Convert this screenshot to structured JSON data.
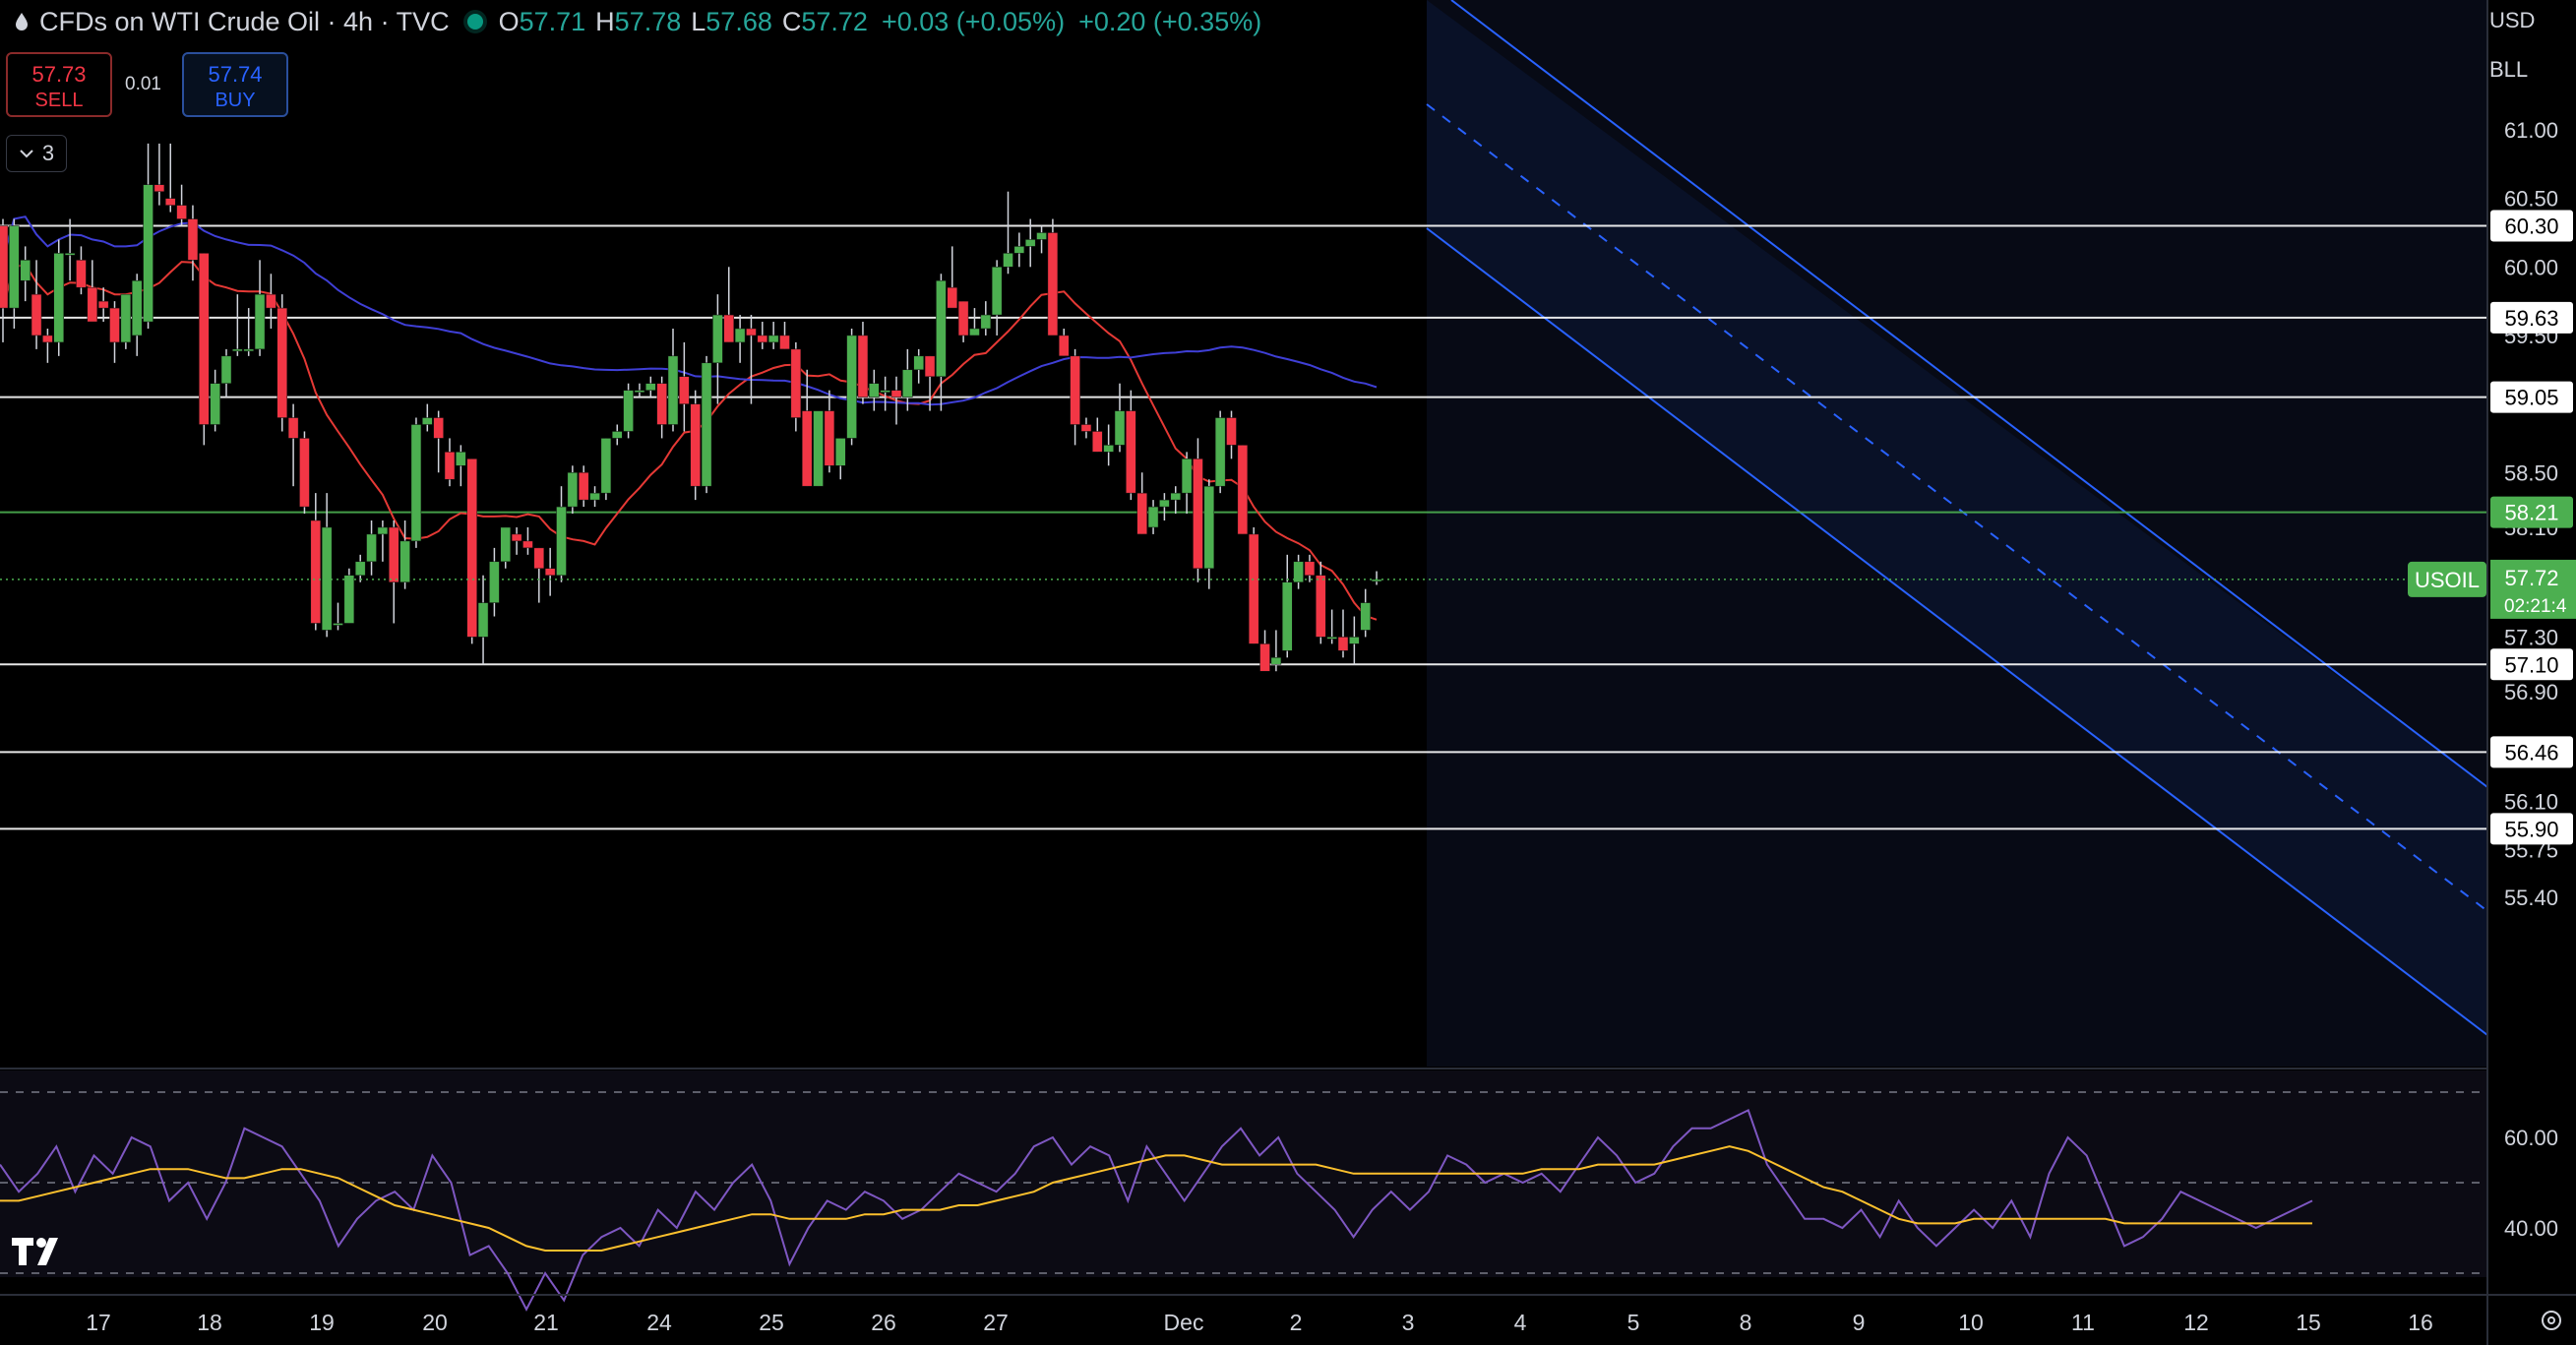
{
  "header": {
    "symbol_title": "CFDs on WTI Crude Oil · 4h · TVC",
    "open": "57.71",
    "high": "57.78",
    "low": "57.68",
    "close": "57.72",
    "change": "+0.03 (+0.05%)",
    "change2": "+0.20 (+0.35%)"
  },
  "trade": {
    "sell_price": "57.73",
    "sell_label": "SELL",
    "spread": "0.01",
    "buy_price": "57.74",
    "buy_label": "BUY"
  },
  "indicators_toggle": "3",
  "right_top": {
    "currency": "USD",
    "unit": "BLL"
  },
  "last_price": {
    "label": "USOIL",
    "price": "57.72",
    "countdown": "02:21:4"
  },
  "colors": {
    "up": "#4caf50",
    "down": "#f23645",
    "ma_fast": "#e53935",
    "ma_slow": "#3f3fd6",
    "rsi": "#7e57c2",
    "rsi_ma": "#fbc02d",
    "channel": "#2962ff"
  },
  "chart_data": [
    {
      "type": "candlestick",
      "title": "CFDs on WTI Crude Oil · 4h · TVC",
      "x_labels": [
        "17",
        "18",
        "19",
        "20",
        "21",
        "24",
        "25",
        "26",
        "27",
        "Dec",
        "2",
        "3",
        "4",
        "5",
        "8",
        "9",
        "10",
        "11",
        "12",
        "15",
        "16"
      ],
      "y_ticks": [
        "61.00",
        "60.50",
        "60.00",
        "59.50",
        "58.50",
        "58.10",
        "57.30",
        "56.90",
        "56.10",
        "55.75",
        "55.40"
      ],
      "ylim": [
        55.2,
        61.6
      ],
      "horizontal_levels": [
        {
          "value": 60.3,
          "label": "60.30",
          "color": "#ffffff"
        },
        {
          "value": 59.63,
          "label": "59.63",
          "color": "#ffffff"
        },
        {
          "value": 59.05,
          "label": "59.05",
          "color": "#ffffff"
        },
        {
          "value": 58.21,
          "label": "58.21",
          "color": "#4caf50"
        },
        {
          "value": 57.1,
          "label": "57.10",
          "color": "#ffffff"
        },
        {
          "value": 56.46,
          "label": "56.46",
          "color": "#ffffff"
        },
        {
          "value": 55.9,
          "label": "55.90",
          "color": "#ffffff"
        }
      ],
      "candles": [
        [
          60.3,
          60.35,
          59.45,
          59.7
        ],
        [
          59.7,
          60.35,
          59.55,
          60.3
        ],
        [
          59.9,
          60.15,
          59.75,
          60.05
        ],
        [
          59.8,
          60.05,
          59.4,
          59.5
        ],
        [
          59.5,
          59.55,
          59.3,
          59.45
        ],
        [
          59.45,
          60.2,
          59.35,
          60.1
        ],
        [
          60.1,
          60.35,
          59.9,
          60.1
        ],
        [
          60.05,
          60.15,
          59.8,
          59.85
        ],
        [
          59.85,
          60.05,
          59.6,
          59.6
        ],
        [
          59.75,
          59.85,
          59.6,
          59.7
        ],
        [
          59.7,
          59.75,
          59.3,
          59.45
        ],
        [
          59.45,
          59.8,
          59.4,
          59.8
        ],
        [
          59.5,
          59.95,
          59.35,
          59.9
        ],
        [
          59.6,
          60.9,
          59.55,
          60.6
        ],
        [
          60.6,
          60.9,
          60.45,
          60.55
        ],
        [
          60.5,
          60.9,
          60.4,
          60.45
        ],
        [
          60.45,
          60.6,
          60.3,
          60.35
        ],
        [
          60.35,
          60.45,
          59.9,
          60.05
        ],
        [
          60.1,
          60.1,
          58.7,
          58.85
        ],
        [
          58.85,
          59.25,
          58.8,
          59.15
        ],
        [
          59.15,
          59.4,
          59.05,
          59.35
        ],
        [
          59.4,
          59.8,
          59.35,
          59.4
        ],
        [
          59.4,
          59.7,
          59.35,
          59.4
        ],
        [
          59.4,
          60.05,
          59.35,
          59.8
        ],
        [
          59.8,
          59.95,
          59.55,
          59.7
        ],
        [
          59.7,
          59.8,
          58.8,
          58.9
        ],
        [
          58.9,
          59.0,
          58.4,
          58.75
        ],
        [
          58.75,
          58.8,
          58.2,
          58.25
        ],
        [
          58.15,
          58.35,
          57.35,
          57.4
        ],
        [
          57.35,
          58.35,
          57.3,
          58.1
        ],
        [
          57.4,
          57.55,
          57.35,
          57.4
        ],
        [
          57.4,
          57.8,
          57.4,
          57.75
        ],
        [
          57.75,
          57.9,
          57.7,
          57.85
        ],
        [
          57.85,
          58.15,
          57.75,
          58.05
        ],
        [
          58.05,
          58.15,
          57.85,
          58.1
        ],
        [
          58.1,
          58.15,
          57.4,
          57.7
        ],
        [
          57.7,
          58.15,
          57.65,
          58.0
        ],
        [
          58.0,
          58.9,
          57.95,
          58.85
        ],
        [
          58.85,
          59.0,
          58.8,
          58.9
        ],
        [
          58.9,
          58.95,
          58.5,
          58.75
        ],
        [
          58.65,
          58.75,
          58.4,
          58.45
        ],
        [
          58.55,
          58.7,
          58.4,
          58.65
        ],
        [
          58.6,
          58.6,
          57.25,
          57.3
        ],
        [
          57.3,
          57.75,
          57.1,
          57.55
        ],
        [
          57.55,
          57.95,
          57.45,
          57.85
        ],
        [
          57.85,
          58.1,
          57.8,
          58.1
        ],
        [
          58.05,
          58.1,
          57.9,
          58.0
        ],
        [
          58.0,
          58.1,
          57.9,
          57.95
        ],
        [
          57.95,
          57.95,
          57.55,
          57.8
        ],
        [
          57.8,
          57.95,
          57.6,
          57.75
        ],
        [
          57.75,
          58.4,
          57.7,
          58.25
        ],
        [
          58.25,
          58.55,
          58.2,
          58.5
        ],
        [
          58.5,
          58.55,
          58.25,
          58.3
        ],
        [
          58.3,
          58.4,
          58.25,
          58.35
        ],
        [
          58.35,
          58.75,
          58.3,
          58.75
        ],
        [
          58.75,
          58.85,
          58.7,
          58.8
        ],
        [
          58.8,
          59.15,
          58.75,
          59.1
        ],
        [
          59.1,
          59.15,
          59.05,
          59.1
        ],
        [
          59.1,
          59.2,
          59.05,
          59.15
        ],
        [
          59.15,
          59.2,
          58.75,
          58.85
        ],
        [
          58.85,
          59.55,
          58.8,
          59.35
        ],
        [
          59.2,
          59.45,
          58.8,
          59.0
        ],
        [
          59.0,
          59.1,
          58.3,
          58.4
        ],
        [
          58.4,
          59.35,
          58.35,
          59.3
        ],
        [
          59.3,
          59.8,
          59.0,
          59.65
        ],
        [
          59.65,
          60.0,
          59.45,
          59.45
        ],
        [
          59.45,
          59.65,
          59.3,
          59.55
        ],
        [
          59.55,
          59.65,
          59.0,
          59.5
        ],
        [
          59.5,
          59.6,
          59.4,
          59.45
        ],
        [
          59.45,
          59.6,
          59.4,
          59.5
        ],
        [
          59.5,
          59.6,
          59.4,
          59.4
        ],
        [
          59.4,
          59.45,
          58.8,
          58.9
        ],
        [
          58.95,
          59.25,
          58.4,
          58.4
        ],
        [
          58.4,
          58.9,
          58.4,
          58.95
        ],
        [
          58.95,
          59.1,
          58.5,
          58.55
        ],
        [
          58.55,
          58.75,
          58.45,
          58.75
        ],
        [
          58.75,
          59.55,
          58.7,
          59.5
        ],
        [
          59.5,
          59.6,
          59.0,
          59.05
        ],
        [
          59.05,
          59.25,
          58.95,
          59.15
        ],
        [
          59.1,
          59.2,
          58.95,
          59.1
        ],
        [
          59.1,
          59.2,
          58.85,
          59.05
        ],
        [
          59.05,
          59.4,
          58.95,
          59.25
        ],
        [
          59.25,
          59.4,
          59.15,
          59.35
        ],
        [
          59.35,
          59.35,
          58.95,
          59.2
        ],
        [
          59.2,
          59.95,
          58.95,
          59.9
        ],
        [
          59.85,
          60.15,
          59.75,
          59.7
        ],
        [
          59.75,
          59.75,
          59.45,
          59.5
        ],
        [
          59.5,
          59.7,
          59.5,
          59.55
        ],
        [
          59.55,
          59.75,
          59.5,
          59.65
        ],
        [
          59.65,
          60.05,
          59.5,
          60.0
        ],
        [
          60.0,
          60.55,
          59.95,
          60.1
        ],
        [
          60.1,
          60.25,
          60.0,
          60.15
        ],
        [
          60.15,
          60.35,
          60.0,
          60.2
        ],
        [
          60.2,
          60.3,
          60.1,
          60.25
        ],
        [
          60.25,
          60.35,
          59.55,
          59.5
        ],
        [
          59.5,
          59.55,
          59.35,
          59.35
        ],
        [
          59.35,
          59.4,
          58.7,
          58.85
        ],
        [
          58.85,
          58.9,
          58.75,
          58.8
        ],
        [
          58.8,
          58.9,
          58.65,
          58.65
        ],
        [
          58.65,
          58.85,
          58.55,
          58.7
        ],
        [
          58.7,
          59.15,
          58.65,
          58.95
        ],
        [
          58.95,
          59.1,
          58.3,
          58.35
        ],
        [
          58.35,
          58.5,
          58.05,
          58.05
        ],
        [
          58.1,
          58.3,
          58.05,
          58.25
        ],
        [
          58.25,
          58.35,
          58.15,
          58.3
        ],
        [
          58.3,
          58.4,
          58.2,
          58.35
        ],
        [
          58.35,
          58.65,
          58.2,
          58.6
        ],
        [
          58.6,
          58.75,
          57.7,
          57.8
        ],
        [
          57.8,
          58.45,
          57.65,
          58.4
        ],
        [
          58.4,
          58.95,
          58.35,
          58.9
        ],
        [
          58.9,
          58.95,
          58.6,
          58.7
        ],
        [
          58.7,
          58.7,
          58.05,
          58.05
        ],
        [
          58.05,
          58.1,
          57.25,
          57.25
        ],
        [
          57.25,
          57.35,
          57.1,
          57.05
        ],
        [
          57.1,
          57.35,
          57.05,
          57.15
        ],
        [
          57.2,
          57.9,
          57.15,
          57.7
        ],
        [
          57.7,
          57.9,
          57.65,
          57.85
        ],
        [
          57.85,
          57.9,
          57.7,
          57.75
        ],
        [
          57.75,
          57.85,
          57.25,
          57.3
        ],
        [
          57.3,
          57.5,
          57.25,
          57.3
        ],
        [
          57.3,
          57.5,
          57.15,
          57.2
        ],
        [
          57.25,
          57.45,
          57.1,
          57.3
        ],
        [
          57.35,
          57.65,
          57.3,
          57.55
        ],
        [
          57.71,
          57.78,
          57.68,
          57.72
        ]
      ]
    },
    {
      "type": "line",
      "title": "",
      "y_ticks": [
        "60.00",
        "40.00"
      ],
      "ylim": [
        20,
        80
      ],
      "bands": [
        70,
        50,
        30
      ],
      "series": [
        {
          "values": [
            54,
            48,
            52,
            58,
            48,
            56,
            52,
            60,
            58,
            46,
            50,
            42,
            50,
            62,
            60,
            58,
            52,
            46,
            36,
            42,
            46,
            48,
            44,
            56,
            50,
            34,
            36,
            30,
            22,
            30,
            24,
            34,
            38,
            40,
            36,
            44,
            40,
            48,
            44,
            50,
            54,
            46,
            32,
            40,
            46,
            44,
            48,
            46,
            42,
            44,
            48,
            52,
            50,
            48,
            52,
            58,
            60,
            54,
            58,
            56,
            46,
            58,
            52,
            46,
            52,
            58,
            62,
            56,
            60,
            52,
            48,
            44,
            38,
            44,
            48,
            44,
            48,
            56,
            54,
            50,
            52,
            50,
            52,
            48,
            54,
            60,
            56,
            50,
            52,
            58,
            62,
            62,
            64,
            66,
            54,
            48,
            42,
            42,
            40,
            44,
            38,
            46,
            40,
            36,
            40,
            44,
            40,
            46,
            38,
            52,
            60,
            56,
            46,
            36,
            38,
            42,
            48,
            46,
            44,
            42,
            40,
            42,
            44,
            46
          ]
        },
        {
          "values": [
            46,
            46,
            47,
            48,
            49,
            50,
            51,
            52,
            53,
            53,
            53,
            52,
            51,
            51,
            52,
            53,
            53,
            52,
            51,
            49,
            47,
            45,
            44,
            43,
            42,
            41,
            40,
            38,
            36,
            35,
            35,
            35,
            35,
            36,
            37,
            38,
            39,
            40,
            41,
            42,
            43,
            43,
            42,
            42,
            42,
            42,
            43,
            43,
            44,
            44,
            44,
            45,
            45,
            46,
            47,
            48,
            50,
            51,
            52,
            53,
            54,
            55,
            56,
            56,
            55,
            54,
            54,
            54,
            54,
            54,
            54,
            53,
            52,
            52,
            52,
            52,
            52,
            52,
            52,
            52,
            52,
            52,
            53,
            53,
            53,
            54,
            54,
            54,
            54,
            55,
            56,
            57,
            58,
            57,
            55,
            53,
            51,
            49,
            48,
            46,
            44,
            42,
            41,
            41,
            41,
            42,
            42,
            42,
            42,
            42,
            42,
            42,
            42,
            41,
            41,
            41,
            41,
            41,
            41,
            41,
            41,
            41,
            41,
            41
          ]
        }
      ]
    }
  ]
}
